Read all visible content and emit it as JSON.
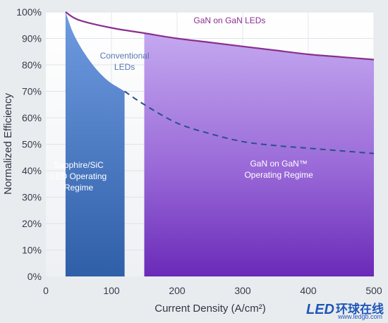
{
  "chart_data": {
    "type": "area",
    "xlabel": "Current Density (A/cm²)",
    "ylabel": "Normalized Efficiency",
    "xlim": [
      0,
      500
    ],
    "ylim": [
      0,
      100
    ],
    "x_ticks": [
      "0",
      "100",
      "200",
      "300",
      "400",
      "500"
    ],
    "y_ticks": [
      "0%",
      "10%",
      "20%",
      "30%",
      "40%",
      "50%",
      "60%",
      "70%",
      "80%",
      "90%",
      "100%"
    ],
    "grid": true,
    "series": [
      {
        "name": "GaN on GaN LEDs",
        "color": "#8a2f8f",
        "style": "solid",
        "x": [
          30,
          50,
          100,
          150,
          200,
          250,
          300,
          350,
          400,
          450,
          500
        ],
        "y": [
          100,
          97,
          94,
          92,
          90,
          88.5,
          87,
          85.5,
          84,
          83,
          82
        ]
      },
      {
        "name": "Conventional LEDs",
        "color": "#2a4f8a",
        "style": "solid-then-dashed",
        "solid_until": 120,
        "x": [
          30,
          40,
          50,
          60,
          70,
          80,
          90,
          100,
          110,
          120,
          150,
          200,
          250,
          300,
          350,
          400,
          450,
          500
        ],
        "y": [
          100,
          93,
          88,
          84,
          80.5,
          77.5,
          75,
          73,
          71.5,
          70,
          65,
          58,
          54,
          51,
          49.5,
          48.5,
          47.5,
          46.5
        ]
      }
    ],
    "regions": [
      {
        "label": [
          "Sapphire/SiC",
          "LED Operating",
          "Regime"
        ],
        "x_range": [
          0,
          120
        ],
        "color": "#4f7fc4"
      },
      {
        "label": [
          "GaN on GaN™",
          "Operating Regime"
        ],
        "x_range": [
          150,
          500
        ],
        "color": "#8a5bd0"
      }
    ]
  },
  "watermark": {
    "logo": "LED",
    "brand": "环球在线",
    "url": "www.ledgb.com"
  }
}
